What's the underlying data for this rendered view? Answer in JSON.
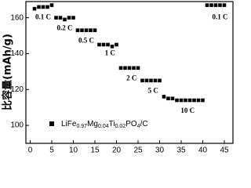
{
  "chart_data": {
    "type": "scatter",
    "y_label": "比容量(mAh/g)",
    "x": [
      1,
      2,
      3,
      4,
      5,
      6,
      7,
      8,
      9,
      10,
      11,
      12,
      13,
      14,
      15,
      16,
      17,
      18,
      19,
      20,
      21,
      22,
      23,
      24,
      25,
      26,
      27,
      28,
      29,
      30,
      31,
      32,
      33,
      34,
      35,
      36,
      37,
      38,
      39,
      40,
      41,
      42,
      43,
      44,
      45
    ],
    "series": [
      {
        "name": "LiFe0.97Mg0.04Ti0.02PO4/C",
        "color": "#000000",
        "values": [
          165,
          166,
          166,
          166,
          167,
          160,
          160,
          159,
          160,
          160,
          153,
          153,
          153,
          153,
          153,
          145,
          145,
          145,
          144,
          145,
          132,
          132,
          132,
          132,
          132,
          125,
          125,
          125,
          125,
          125,
          116,
          115,
          115,
          114,
          114,
          114,
          114,
          114,
          114,
          114,
          167,
          167,
          167,
          167,
          167
        ]
      }
    ],
    "xlim": [
      -1,
      47
    ],
    "ylim": [
      90,
      169
    ],
    "xticks": [
      0,
      5,
      10,
      15,
      20,
      25,
      30,
      35,
      40,
      45
    ],
    "yticks": [
      100,
      120,
      140,
      160
    ],
    "annotations": [
      {
        "text": "0.1 C",
        "x": 3,
        "y": 160
      },
      {
        "text": "0.2 C",
        "x": 8,
        "y": 154
      },
      {
        "text": "0.5 C",
        "x": 13,
        "y": 147
      },
      {
        "text": "1 C",
        "x": 18.5,
        "y": 140
      },
      {
        "text": "2 C",
        "x": 23.5,
        "y": 126
      },
      {
        "text": "5 C",
        "x": 28.5,
        "y": 119
      },
      {
        "text": "10 C",
        "x": 36.5,
        "y": 108
      },
      {
        "text": "0.1 C",
        "x": 44,
        "y": 160
      }
    ]
  }
}
